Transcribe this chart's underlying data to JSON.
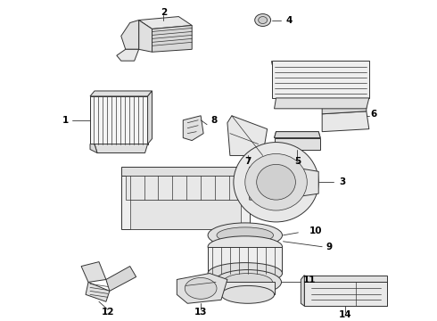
{
  "background_color": "#ffffff",
  "line_color": "#333333",
  "text_color": "#000000",
  "fig_width": 4.9,
  "fig_height": 3.6,
  "dpi": 100
}
